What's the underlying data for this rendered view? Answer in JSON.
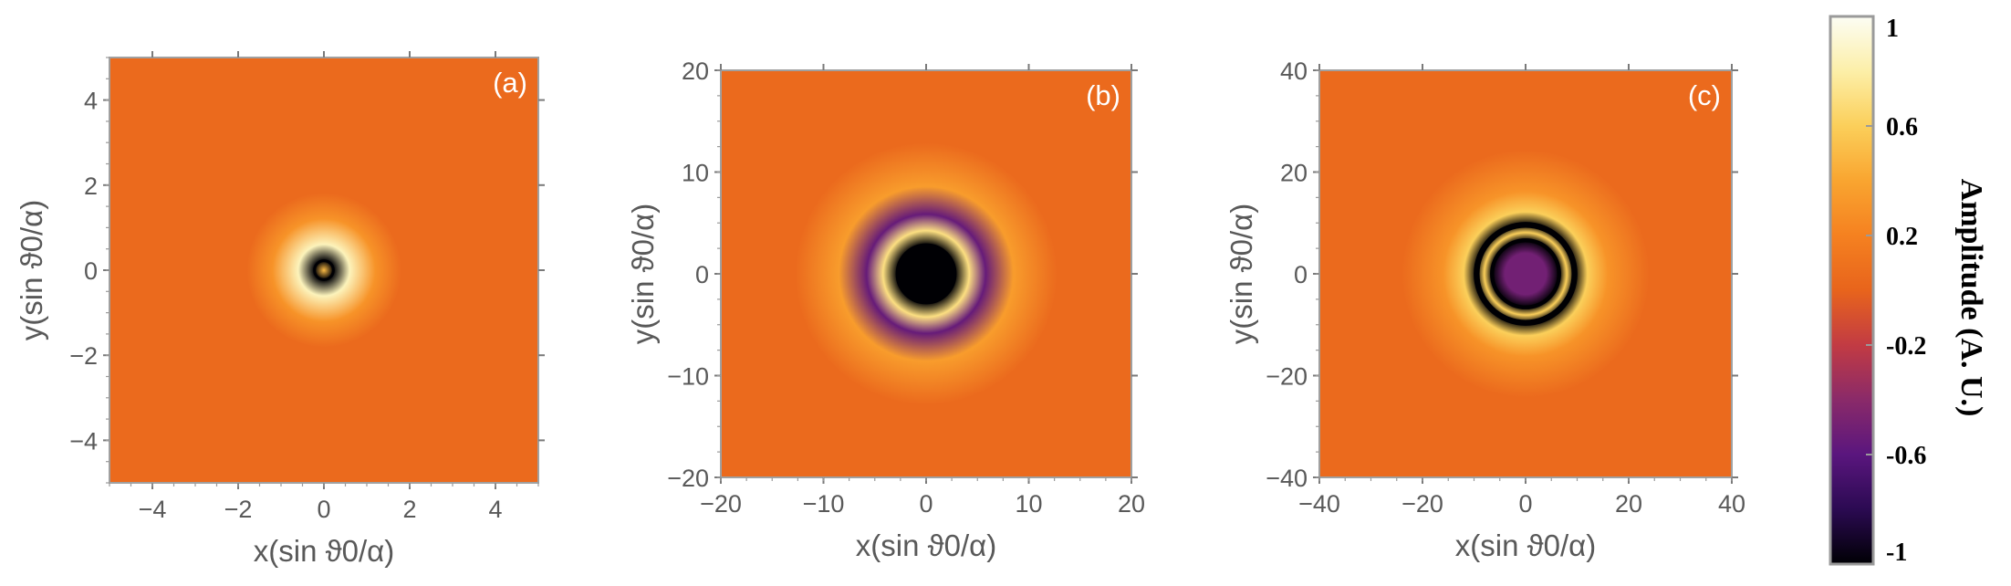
{
  "chart_data": [
    {
      "type": "heatmap",
      "panel_label": "(a)",
      "xlabel": "x(sin ϑ0/α)",
      "ylabel": "y(sin ϑ0/α)",
      "xlim": [
        -5,
        5
      ],
      "ylim": [
        -5,
        5
      ],
      "xticks": [
        -4,
        -2,
        0,
        2,
        4
      ],
      "yticks": [
        -4,
        -2,
        0,
        2,
        4
      ],
      "pattern": "central dark ring (Airy-like) with bright halo",
      "rings": [
        {
          "radius": 0.0,
          "amplitude": 0.5
        },
        {
          "radius": 0.22,
          "amplitude": -1.0
        },
        {
          "radius": 0.6,
          "amplitude": 0.85
        },
        {
          "radius": 1.2,
          "amplitude": 0.3
        }
      ]
    },
    {
      "type": "heatmap",
      "panel_label": "(b)",
      "xlabel": "x(sin ϑ0/α)",
      "ylabel": "y(sin ϑ0/α)",
      "xlim": [
        -20,
        20
      ],
      "ylim": [
        -20,
        20
      ],
      "xticks": [
        -20,
        -10,
        0,
        10,
        20
      ],
      "yticks": [
        -20,
        -10,
        0,
        10,
        20
      ],
      "pattern": "single dark ring with purple outer halo",
      "rings": [
        {
          "radius": 2.8,
          "amplitude": -1.0
        },
        {
          "radius": 4.2,
          "amplitude": 0.7
        },
        {
          "radius": 5.8,
          "amplitude": -0.55
        },
        {
          "radius": 8.5,
          "amplitude": 0.35
        }
      ]
    },
    {
      "type": "heatmap",
      "panel_label": "(c)",
      "xlabel": "x(sin ϑ0/α)",
      "ylabel": "y(sin ϑ0/α)",
      "xlim": [
        -40,
        40
      ],
      "ylim": [
        -40,
        40
      ],
      "xticks": [
        -40,
        -20,
        0,
        20,
        40
      ],
      "yticks": [
        -40,
        -20,
        0,
        20,
        40
      ],
      "pattern": "multiple concentric dark rings",
      "rings": [
        {
          "radius": 4.0,
          "amplitude": -0.5
        },
        {
          "radius": 6.5,
          "amplitude": -1.0
        },
        {
          "radius": 8.0,
          "amplitude": 0.6
        },
        {
          "radius": 9.5,
          "amplitude": -1.0
        },
        {
          "radius": 12.0,
          "amplitude": 0.6
        },
        {
          "radius": 16.0,
          "amplitude": 0.3
        }
      ]
    }
  ],
  "colorbar": {
    "title": "Amplitude (A. U.)",
    "range": [
      -1,
      1
    ],
    "ticks": [
      "1",
      "0.6",
      "0.2",
      "-0.2",
      "-0.6",
      "-1"
    ],
    "tick_values": [
      1,
      0.6,
      0.2,
      -0.2,
      -0.6,
      -1
    ],
    "colormap": [
      "#000004",
      "#2b0a52",
      "#5a167e",
      "#8a2a69",
      "#c23b43",
      "#e8641c",
      "#f58120",
      "#f9a530",
      "#fbcf5a",
      "#fcefa8",
      "#fcfdf4"
    ]
  }
}
